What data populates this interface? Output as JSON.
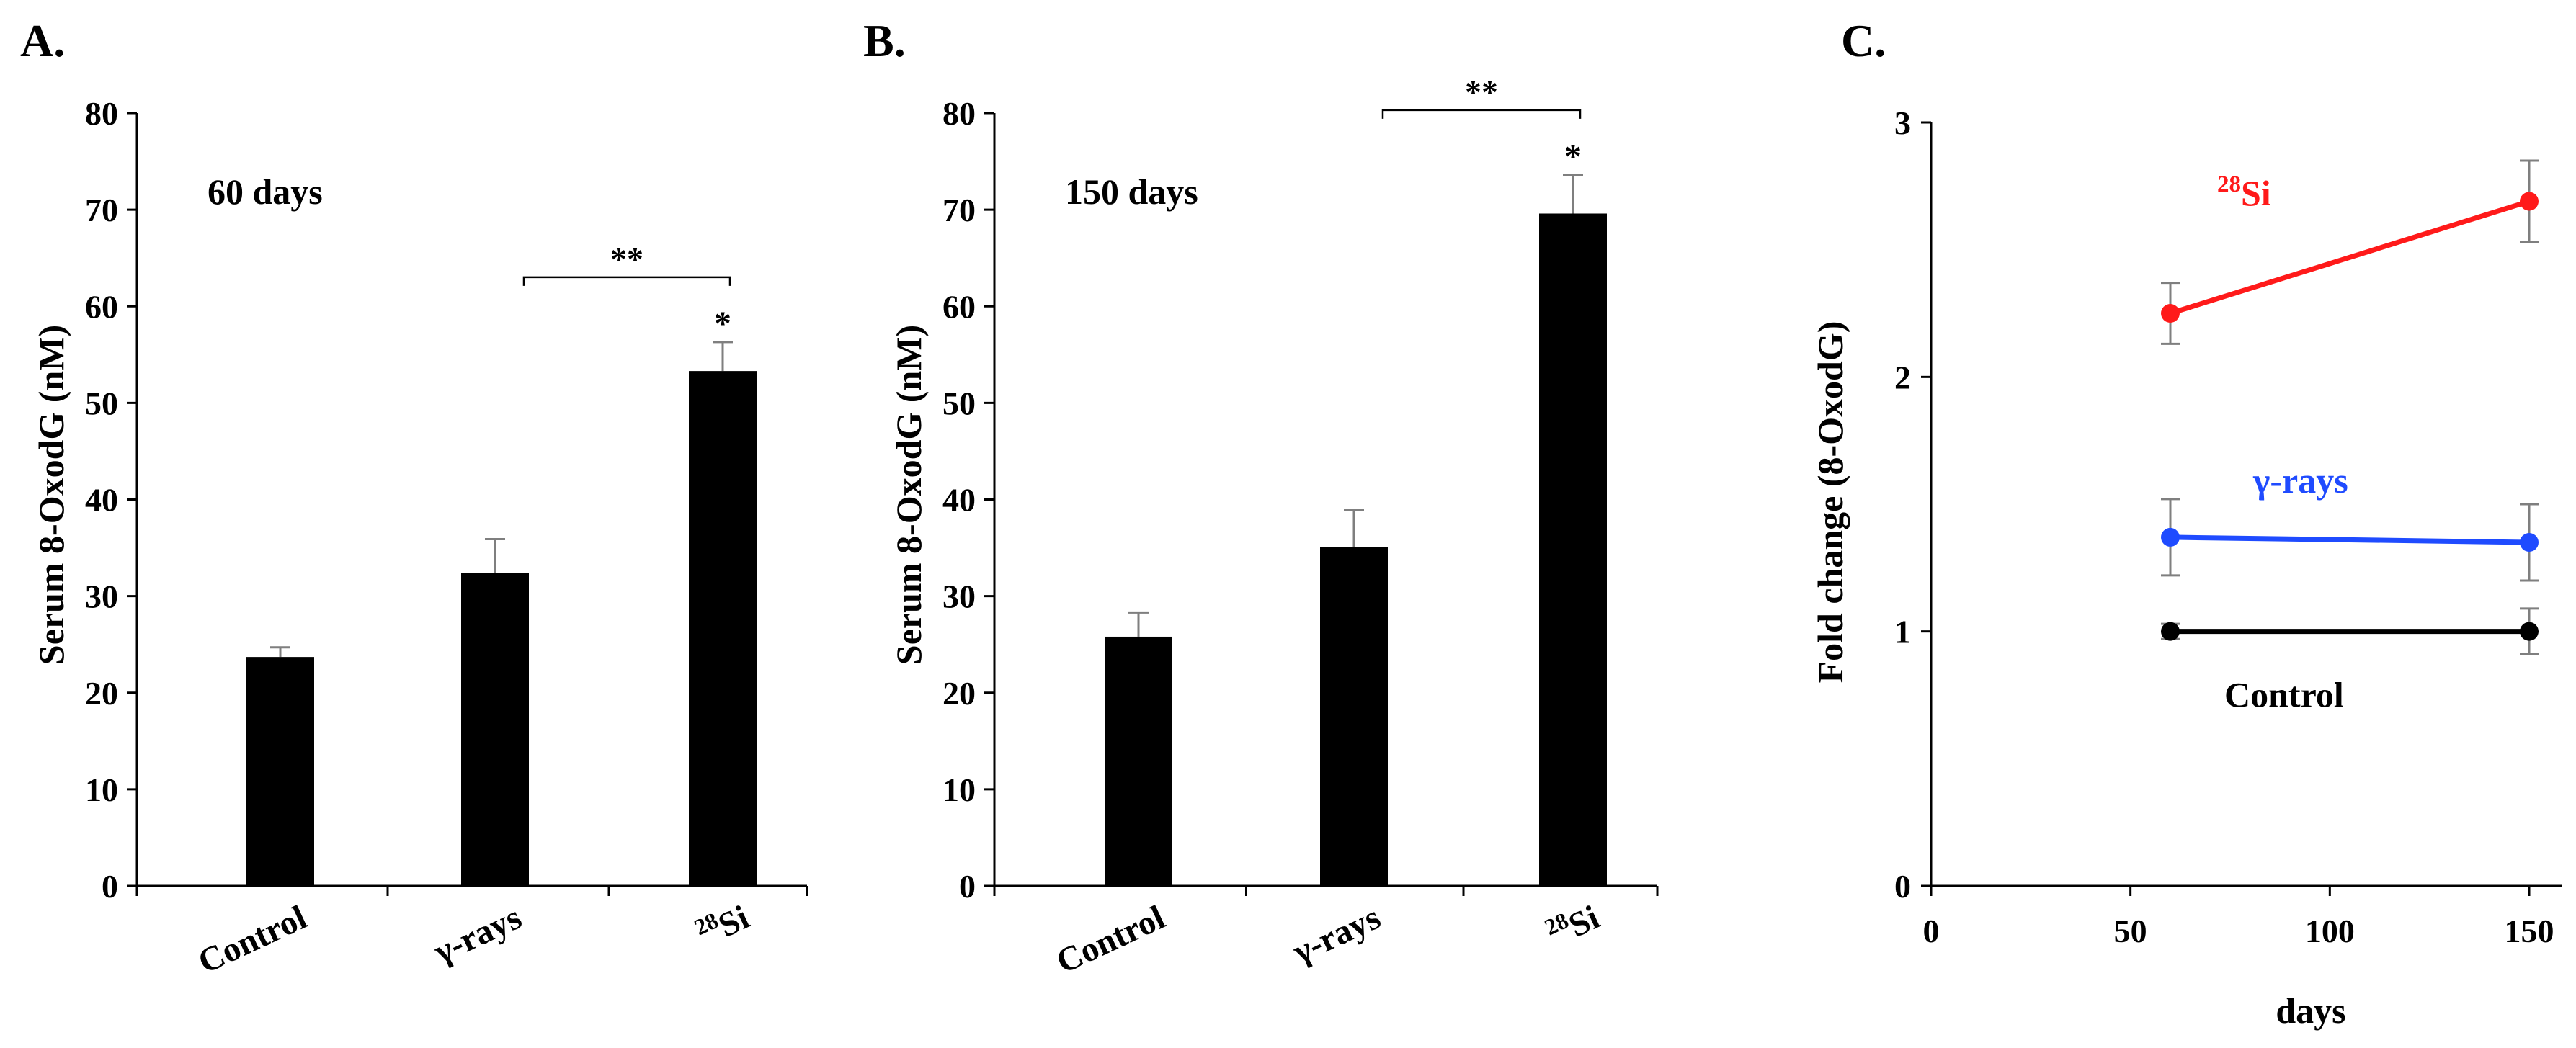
{
  "colors": {
    "black": "#000000",
    "red": "#ff1a1a",
    "blue": "#1f4bff",
    "gray": "#7f7f7f"
  },
  "chart_data": [
    {
      "panel": "A.",
      "type": "bar",
      "annotation": "60 days",
      "ylabel": "Serum 8-OxodG (nM)",
      "xlabel": "",
      "ylim": [
        0,
        80
      ],
      "yticks": [
        0,
        10,
        20,
        30,
        40,
        50,
        60,
        70,
        80
      ],
      "categories": [
        {
          "pre": "Control",
          "sup": "",
          "post": ""
        },
        {
          "pre": "γ-rays",
          "sup": "",
          "post": ""
        },
        {
          "pre": "",
          "sup": "28",
          "post": "Si"
        }
      ],
      "values": [
        23.7,
        32.4,
        53.3
      ],
      "errors": [
        1.0,
        3.5,
        3.0
      ],
      "significance": {
        "star_category": 2,
        "star": "*",
        "bracket": [
          1,
          2
        ],
        "bracket_label": "**"
      }
    },
    {
      "panel": "B.",
      "type": "bar",
      "annotation": "150 days",
      "ylabel": "Serum 8-OxodG (nM)",
      "xlabel": "",
      "ylim": [
        0,
        80
      ],
      "yticks": [
        0,
        10,
        20,
        30,
        40,
        50,
        60,
        70,
        80
      ],
      "categories": [
        {
          "pre": "Control",
          "sup": "",
          "post": ""
        },
        {
          "pre": "γ-rays",
          "sup": "",
          "post": ""
        },
        {
          "pre": "",
          "sup": "28",
          "post": "Si"
        }
      ],
      "values": [
        25.8,
        35.1,
        69.6
      ],
      "errors": [
        2.5,
        3.8,
        4.0
      ],
      "significance": {
        "star_category": 2,
        "star": "*",
        "bracket": [
          1,
          2
        ],
        "bracket_label": "**"
      }
    },
    {
      "panel": "C.",
      "type": "line",
      "xlabel": "days",
      "ylabel": "Fold change (8-OxodG)",
      "xlim": [
        0,
        150
      ],
      "ylim": [
        0,
        3
      ],
      "xticks": [
        0,
        50,
        100,
        150
      ],
      "yticks": [
        0,
        1,
        2,
        3
      ],
      "x": [
        60,
        150
      ],
      "series": [
        {
          "label_pre": "",
          "label_sup": "28",
          "label_post": "Si",
          "color": "#ff1a1a",
          "values": [
            2.25,
            2.69
          ],
          "errors": [
            0.12,
            0.16
          ]
        },
        {
          "label_pre": "γ-rays",
          "label_sup": "",
          "label_post": "",
          "color": "#1f4bff",
          "values": [
            1.37,
            1.35
          ],
          "errors": [
            0.15,
            0.15
          ]
        },
        {
          "label_pre": "Control",
          "label_sup": "",
          "label_post": "",
          "color": "#000000",
          "values": [
            1.0,
            1.0
          ],
          "errors": [
            0.03,
            0.09
          ]
        }
      ]
    }
  ]
}
